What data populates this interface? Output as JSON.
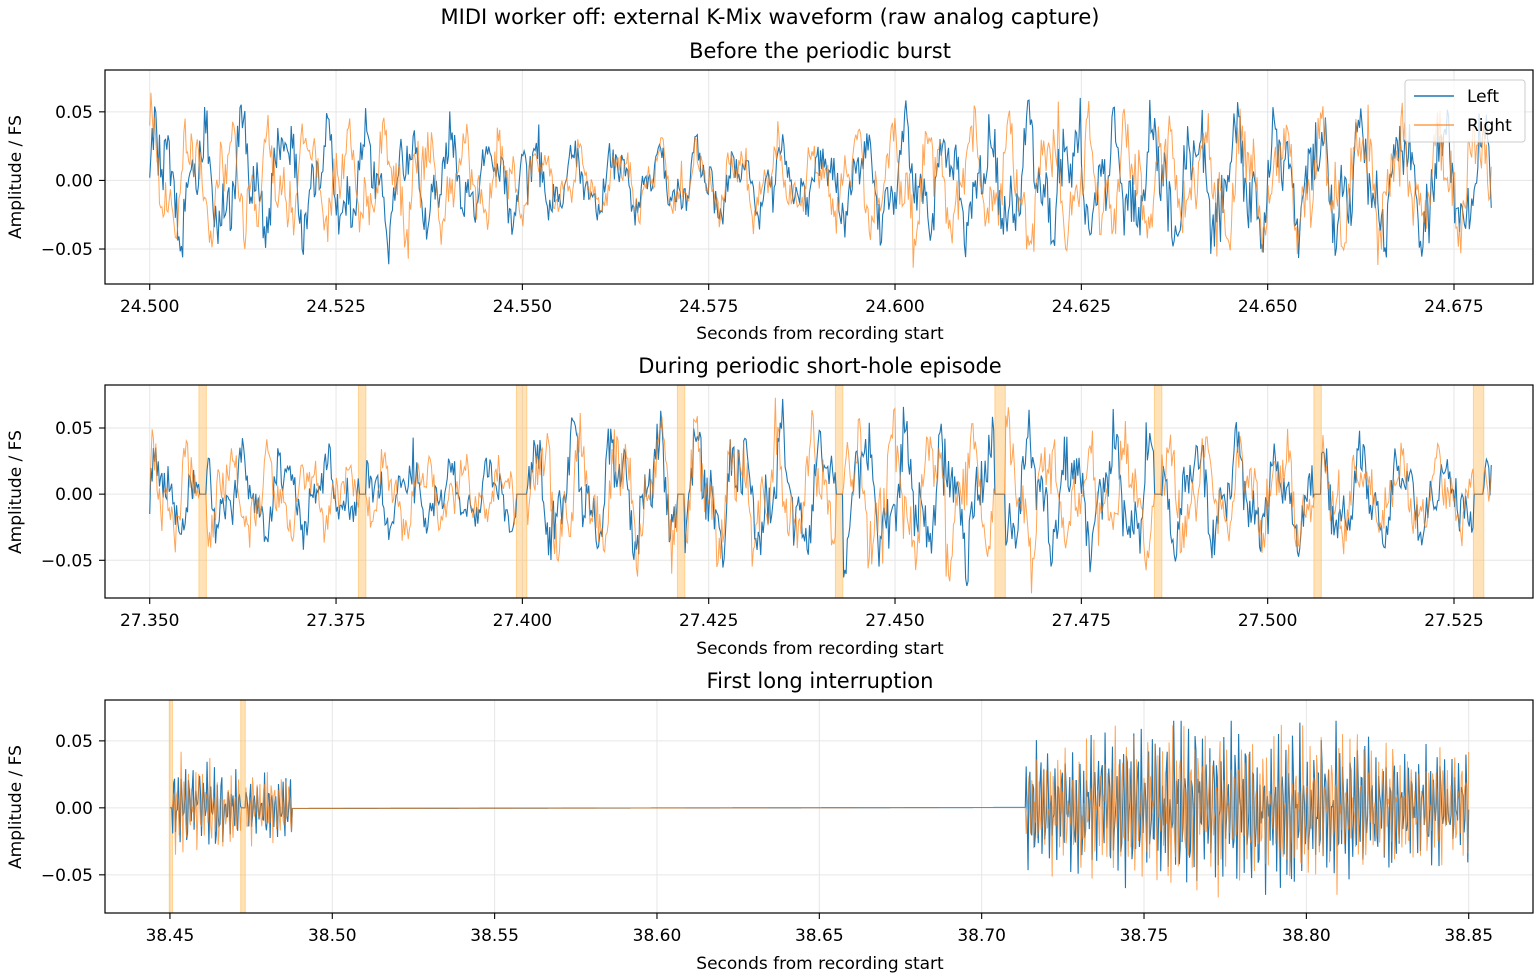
{
  "figure": {
    "suptitle": "MIDI worker off: external K-Mix waveform (raw analog capture)"
  },
  "colors": {
    "left": "#1f77b4",
    "right": "#ff7f0e",
    "hole_shade": "#ffbf5f",
    "grid": "#e6e6e6"
  },
  "legend": {
    "placement": "top-right",
    "entries": [
      {
        "label": "Left",
        "color": "#1f77b4"
      },
      {
        "label": "Right",
        "color": "#ff7f0e"
      }
    ]
  },
  "chart_data": [
    {
      "type": "line",
      "title": "Before the periodic burst",
      "xlabel": "Seconds from recording start",
      "ylabel": "Amplitude / FS",
      "xlim": [
        24.494,
        24.6856
      ],
      "ylim": [
        -0.0755,
        0.0805
      ],
      "xticks": [
        24.5,
        24.525,
        24.55,
        24.575,
        24.6,
        24.625,
        24.65,
        24.675
      ],
      "xticklabels": [
        "24.500",
        "24.525",
        "24.550",
        "24.575",
        "24.600",
        "24.625",
        "24.650",
        "24.675"
      ],
      "yticks": [
        -0.05,
        0.0,
        0.05
      ],
      "yticklabels": [
        "−0.05",
        "0.00",
        "0.05"
      ],
      "grid": true,
      "legend": "top-right",
      "x_range": [
        24.5,
        24.68
      ],
      "series": [
        {
          "name": "Left",
          "color": "#1f77b4",
          "envelope_peak": 0.068,
          "sample_start": 0.002,
          "sample_end": -0.02
        },
        {
          "name": "Right",
          "color": "#ff7f0e",
          "envelope_peak": 0.065,
          "sample_start": 0.04,
          "sample_end": 0.01
        }
      ],
      "amplitude_profile": [
        [
          24.5,
          0.055
        ],
        [
          24.54,
          0.045
        ],
        [
          24.555,
          0.03
        ],
        [
          24.59,
          0.03
        ],
        [
          24.6,
          0.05
        ],
        [
          24.68,
          0.058
        ]
      ],
      "shaded_spans": []
    },
    {
      "type": "line",
      "title": "During periodic short-hole episode",
      "xlabel": "Seconds from recording start",
      "ylabel": "Amplitude / FS",
      "xlim": [
        27.344,
        27.5356
      ],
      "ylim": [
        -0.0785,
        0.0825
      ],
      "xticks": [
        27.35,
        27.375,
        27.4,
        27.425,
        27.45,
        27.475,
        27.5,
        27.525
      ],
      "xticklabels": [
        "27.350",
        "27.375",
        "27.400",
        "27.425",
        "27.450",
        "27.475",
        "27.500",
        "27.525"
      ],
      "yticks": [
        -0.05,
        0.0,
        0.05
      ],
      "yticklabels": [
        "−0.05",
        "0.00",
        "0.05"
      ],
      "grid": true,
      "x_range": [
        27.35,
        27.53
      ],
      "series": [
        {
          "name": "Left",
          "color": "#1f77b4",
          "envelope_peak": 0.072,
          "sample_start": -0.015,
          "sample_end": 0.022
        },
        {
          "name": "Right",
          "color": "#ff7f0e",
          "envelope_peak": 0.075,
          "sample_start": 0.0,
          "sample_end": 0.015
        }
      ],
      "amplitude_profile": [
        [
          27.35,
          0.045
        ],
        [
          27.375,
          0.035
        ],
        [
          27.398,
          0.03
        ],
        [
          27.402,
          0.055
        ],
        [
          27.45,
          0.06
        ],
        [
          27.475,
          0.055
        ],
        [
          27.53,
          0.035
        ]
      ],
      "shaded_spans": [
        [
          27.3566,
          27.3576
        ],
        [
          27.378,
          27.379
        ],
        [
          27.3992,
          27.4006
        ],
        [
          27.4208,
          27.4218
        ],
        [
          27.442,
          27.443
        ],
        [
          27.4634,
          27.4648
        ],
        [
          27.4848,
          27.4858
        ],
        [
          27.5062,
          27.5072
        ],
        [
          27.5276,
          27.529
        ]
      ]
    },
    {
      "type": "line",
      "title": "First long interruption",
      "xlabel": "Seconds from recording start",
      "ylabel": "Amplitude / FS",
      "xlim": [
        38.43,
        38.8698
      ],
      "ylim": [
        -0.0785,
        0.0805
      ],
      "xticks": [
        38.45,
        38.5,
        38.55,
        38.6,
        38.65,
        38.7,
        38.75,
        38.8,
        38.85
      ],
      "xticklabels": [
        "38.45",
        "38.50",
        "38.55",
        "38.60",
        "38.65",
        "38.70",
        "38.75",
        "38.80",
        "38.85"
      ],
      "yticks": [
        -0.05,
        0.0,
        0.05
      ],
      "yticklabels": [
        "−0.05",
        "0.00",
        "0.05"
      ],
      "grid": true,
      "x_range": [
        38.45,
        38.85
      ],
      "series": [
        {
          "name": "Left",
          "color": "#1f77b4",
          "envelope_peak": 0.065
        },
        {
          "name": "Right",
          "color": "#ff7f0e",
          "envelope_peak": 0.072
        }
      ],
      "signal_segments": [
        [
          38.45,
          38.4875
        ],
        [
          38.7135,
          38.85
        ]
      ],
      "silence_segment": [
        38.4875,
        38.7135
      ],
      "amplitude_profile": [
        [
          38.45,
          0.035
        ],
        [
          38.4875,
          0.025
        ],
        [
          38.7135,
          0.045
        ],
        [
          38.75,
          0.06
        ],
        [
          38.8,
          0.06
        ],
        [
          38.85,
          0.04
        ]
      ],
      "shaded_spans": [
        [
          38.4498,
          38.4508
        ],
        [
          38.4718,
          38.4732
        ]
      ]
    }
  ]
}
